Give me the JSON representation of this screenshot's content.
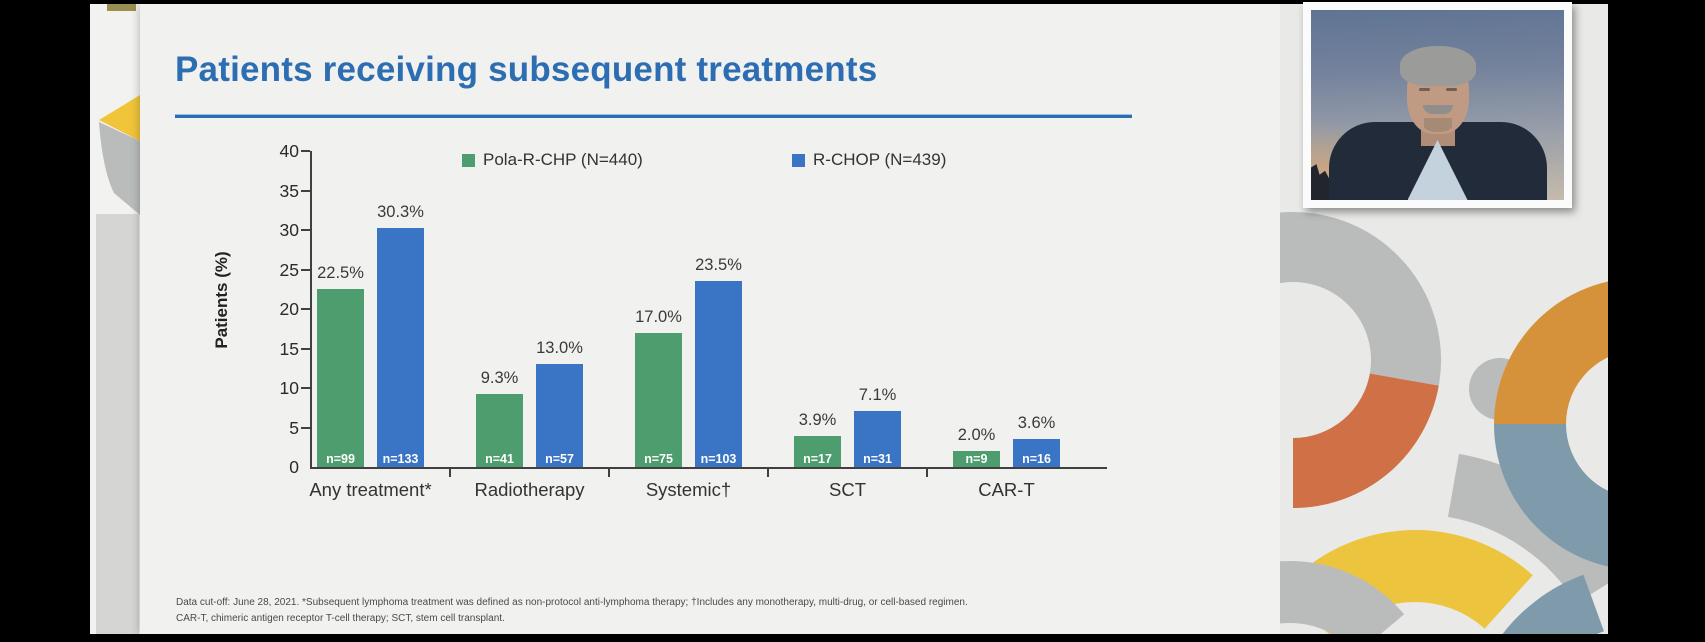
{
  "slide": {
    "title": "Patients receiving subsequent treatments",
    "footnote_line1": "Data cut-off: June 28, 2021. *Subsequent lymphoma treatment was defined as non-protocol anti-lymphoma therapy; †Includes any monotherapy, multi-drug, or cell-based regimen.",
    "footnote_line2": "CAR-T, chimeric antigen receptor T-cell therapy; SCT, stem cell transplant."
  },
  "chart_data": {
    "type": "bar",
    "title": "Patients receiving subsequent treatments",
    "xlabel": "",
    "ylabel": "Patients (%)",
    "ylim": [
      0,
      40
    ],
    "yticks": [
      0,
      5,
      10,
      15,
      20,
      25,
      30,
      35,
      40
    ],
    "grid": false,
    "legend_position": "top",
    "categories": [
      "Any treatment*",
      "Radiotherapy",
      "Systemic†",
      "SCT",
      "CAR-T"
    ],
    "series": [
      {
        "name": "Pola-R-CHP (N=440)",
        "color": "#4e9d6e",
        "values": [
          22.5,
          9.3,
          17.0,
          3.9,
          2.0
        ],
        "value_labels": [
          "22.5%",
          "9.3%",
          "17.0%",
          "3.9%",
          "2.0%"
        ],
        "n_labels": [
          "n=99",
          "n=41",
          "n=75",
          "n=17",
          "n=9"
        ]
      },
      {
        "name": "R-CHOP (N=439)",
        "color": "#3a74c4",
        "values": [
          30.3,
          13.0,
          23.5,
          7.1,
          3.6
        ],
        "value_labels": [
          "30.3%",
          "13.0%",
          "23.5%",
          "7.1%",
          "3.6%"
        ],
        "n_labels": [
          "n=133",
          "n=57",
          "n=103",
          "n=31",
          "n=16"
        ]
      }
    ]
  },
  "theme": {
    "title_color": "#2d6eb2",
    "axis_color": "#404040",
    "slide_bg": "#f1f1ef",
    "panel_bg": "#e9e9e7",
    "decor_gray": "#b9bcbb",
    "decor_orange": "#cf7046",
    "decor_amber": "#d6923b",
    "decor_yellow": "#ecc43e",
    "decor_blue": "#7e9aab"
  }
}
